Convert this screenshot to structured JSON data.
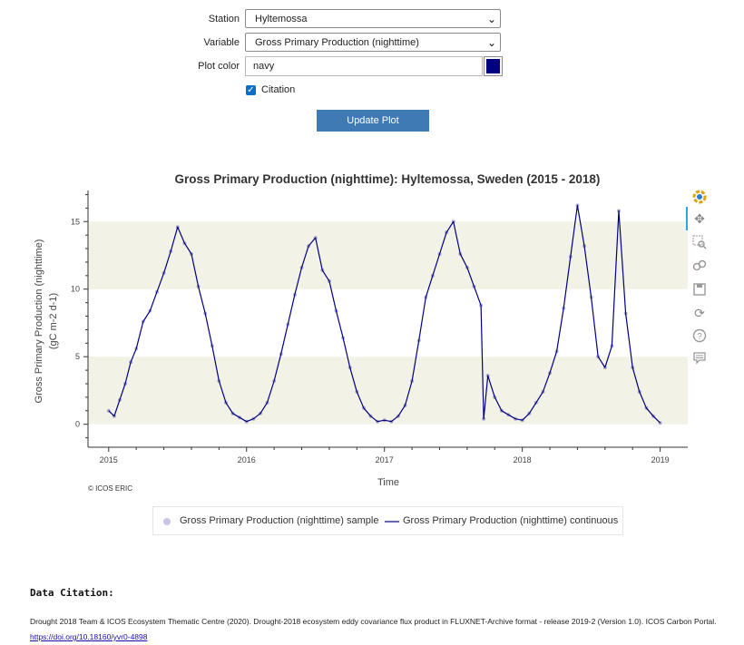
{
  "form": {
    "station_label": "Station",
    "station_value": "Hyltemossa",
    "variable_label": "Variable",
    "variable_value": "Gross Primary Production (nighttime)",
    "color_label": "Plot color",
    "color_value": "navy",
    "color_swatch": "#000080",
    "citation_label": "Citation",
    "citation_checked": true,
    "update_label": "Update Plot"
  },
  "toolbar": {
    "icons": [
      "bokeh-logo-icon",
      "pan-icon",
      "box-zoom-icon",
      "wheel-zoom-icon",
      "save-icon",
      "reset-icon",
      "help-icon",
      "hover-icon"
    ]
  },
  "chart_data": {
    "type": "line",
    "title": "Gross Primary Production (nighttime): Hyltemossa, Sweden (2015 - 2018)",
    "xlabel": "Time",
    "ylabel_line1": "Gross Primary Production (nighttime)",
    "ylabel_line2": "(gC m-2 d-1)",
    "x_ticks": [
      "2015",
      "2016",
      "2017",
      "2018",
      "2019"
    ],
    "y_ticks": [
      "0",
      "5",
      "10",
      "15"
    ],
    "xlim": [
      2014.85,
      2019.2
    ],
    "ylim": [
      -1.7,
      17.3
    ],
    "bands": [
      [
        0,
        5
      ],
      [
        10,
        15
      ]
    ],
    "band_color": "#f2f2e6",
    "line_color": "#000080",
    "credit": "© ICOS ERIC",
    "legend": {
      "sample": "Gross Primary Production (nighttime) sample",
      "continuous": "Gross Primary Production (nighttime) continuous"
    },
    "series": [
      {
        "x": [
          2015.0,
          2015.04,
          2015.08,
          2015.12,
          2015.16,
          2015.2,
          2015.25,
          2015.3,
          2015.35,
          2015.4,
          2015.45,
          2015.5,
          2015.55,
          2015.6,
          2015.65,
          2015.7,
          2015.75,
          2015.8,
          2015.85,
          2015.9,
          2015.95,
          2016.0,
          2016.05,
          2016.1,
          2016.15,
          2016.2,
          2016.25,
          2016.3,
          2016.35,
          2016.4,
          2016.45,
          2016.5,
          2016.55,
          2016.6,
          2016.65,
          2016.7,
          2016.75,
          2016.8,
          2016.85,
          2016.9,
          2016.95,
          2017.0,
          2017.05,
          2017.1,
          2017.15,
          2017.2,
          2017.25,
          2017.3,
          2017.35,
          2017.4,
          2017.45,
          2017.5,
          2017.55,
          2017.6,
          2017.65,
          2017.7,
          2017.72,
          2017.75,
          2017.8,
          2017.85,
          2017.9,
          2017.95,
          2018.0,
          2018.05,
          2018.1,
          2018.15,
          2018.2,
          2018.25,
          2018.3,
          2018.35,
          2018.4,
          2018.45,
          2018.5,
          2018.55,
          2018.6,
          2018.65,
          2018.7,
          2018.75,
          2018.8,
          2018.85,
          2018.9,
          2018.95,
          2019.0
        ],
        "y": [
          1.0,
          0.6,
          1.8,
          3.0,
          4.6,
          5.6,
          7.6,
          8.4,
          9.8,
          11.2,
          12.8,
          14.6,
          13.4,
          12.6,
          10.2,
          8.2,
          5.8,
          3.2,
          1.6,
          0.8,
          0.5,
          0.2,
          0.4,
          0.8,
          1.6,
          3.2,
          5.2,
          7.4,
          9.6,
          11.6,
          13.2,
          13.8,
          11.4,
          10.6,
          8.4,
          6.4,
          4.2,
          2.4,
          1.2,
          0.6,
          0.2,
          0.3,
          0.2,
          0.6,
          1.4,
          3.2,
          6.2,
          9.4,
          11.0,
          12.6,
          14.2,
          15.0,
          12.6,
          11.6,
          10.2,
          8.8,
          0.4,
          3.6,
          2.0,
          1.0,
          0.7,
          0.4,
          0.3,
          0.8,
          1.6,
          2.4,
          3.8,
          5.4,
          8.6,
          12.4,
          16.2,
          13.2,
          9.4,
          5.0,
          4.2,
          5.8,
          15.8,
          8.2,
          4.2,
          2.4,
          1.2,
          0.6,
          0.1
        ]
      }
    ]
  },
  "citation": {
    "heading": "Data Citation:",
    "text": "Drought 2018 Team & ICOS Ecosystem Thematic Centre (2020). Drought-2018 ecosystem eddy covariance flux product in FLUXNET-Archive format - release 2019-2 (Version 1.0). ICOS Carbon Portal. ",
    "link": "https://doi.org/10.18160/yvr0-4898"
  }
}
